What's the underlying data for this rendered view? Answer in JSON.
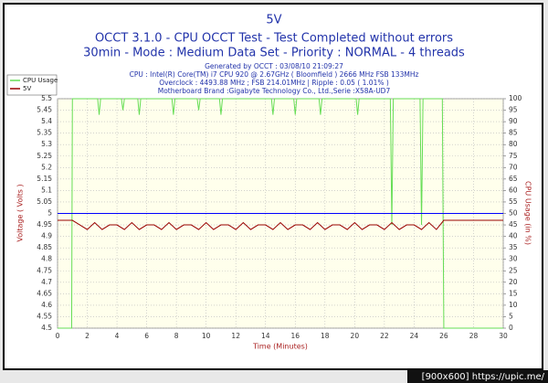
{
  "chart_data": {
    "type": "line",
    "title": "5V",
    "subtitle": "OCCT 3.1.0 - CPU OCCT Test - Test Completed without errors",
    "subtitle2": "30min - Mode : Medium Data Set - Priority : NORMAL - 4 threads",
    "info": [
      "Generated by OCCT : 03/08/10 21:09:27",
      "CPU : Intel(R) Core(TM) i7 CPU 920 @ 2.67GHz ( Bloomfield ) 2666 MHz FSB 133MHz",
      "Overclock : 4493.88 MHz ; FSB 214.01MHz | Ripple : 0.05 ( 1.01% )",
      "Motherboard Brand :Gigabyte Technology Co., Ltd.,Serie :X58A-UD7"
    ],
    "xlabel": "Time (Minutes)",
    "ylabel": "Voltage ( Volts )",
    "y2label": "CPU Usage (in %)",
    "xlim": [
      0,
      30
    ],
    "xticks": [
      0,
      2,
      4,
      6,
      8,
      10,
      12,
      14,
      16,
      18,
      20,
      22,
      24,
      26,
      28,
      30
    ],
    "ylim": [
      4.5,
      5.5
    ],
    "yticks": [
      4.5,
      4.55,
      4.6,
      4.65,
      4.7,
      4.75,
      4.8,
      4.85,
      4.9,
      4.95,
      5,
      5.05,
      5.1,
      5.15,
      5.2,
      5.25,
      5.3,
      5.35,
      5.4,
      5.45,
      5.5
    ],
    "y2lim": [
      0,
      100
    ],
    "y2ticks": [
      0,
      5,
      10,
      15,
      20,
      25,
      30,
      35,
      40,
      45,
      50,
      55,
      60,
      65,
      70,
      75,
      80,
      85,
      90,
      95,
      100
    ],
    "grid": true,
    "reference_line": {
      "value": 5,
      "color": "#0000ff"
    },
    "series": [
      {
        "name": "CPU Usage",
        "color": "#66dd55",
        "axis": "y2",
        "x": [
          0,
          0.95,
          1,
          2.7,
          2.8,
          2.9,
          4.3,
          4.4,
          4.5,
          5.4,
          5.5,
          5.6,
          7.7,
          7.8,
          7.9,
          9.4,
          9.5,
          9.6,
          10.9,
          11,
          11.1,
          14.4,
          14.5,
          14.6,
          15.9,
          16,
          16.1,
          17.6,
          17.7,
          17.8,
          20.1,
          20.2,
          20.3,
          22.4,
          22.5,
          22.6,
          24.4,
          24.5,
          24.6,
          25.9,
          26,
          30
        ],
        "values": [
          0,
          0,
          100,
          100,
          93,
          100,
          100,
          95,
          100,
          100,
          93,
          100,
          100,
          93,
          100,
          100,
          95,
          100,
          100,
          93,
          100,
          100,
          93,
          100,
          100,
          93,
          100,
          100,
          93,
          100,
          100,
          93,
          100,
          100,
          45,
          100,
          100,
          45,
          100,
          100,
          0,
          0
        ]
      },
      {
        "name": "5V",
        "color": "#990000",
        "x": [
          0,
          0.5,
          1,
          1.5,
          2,
          2.5,
          3,
          3.5,
          4,
          4.5,
          5,
          5.5,
          6,
          6.5,
          7,
          7.5,
          8,
          8.5,
          9,
          9.5,
          10,
          10.5,
          11,
          11.5,
          12,
          12.5,
          13,
          13.5,
          14,
          14.5,
          15,
          15.5,
          16,
          16.5,
          17,
          17.5,
          18,
          18.5,
          19,
          19.5,
          20,
          20.5,
          21,
          21.5,
          22,
          22.5,
          23,
          23.5,
          24,
          24.5,
          25,
          25.5,
          26,
          26.5,
          27,
          27.5,
          28,
          28.5,
          29,
          29.5,
          30
        ],
        "values": [
          4.97,
          4.97,
          4.97,
          4.95,
          4.93,
          4.96,
          4.93,
          4.95,
          4.95,
          4.93,
          4.96,
          4.93,
          4.95,
          4.95,
          4.93,
          4.96,
          4.93,
          4.95,
          4.95,
          4.93,
          4.96,
          4.93,
          4.95,
          4.95,
          4.93,
          4.96,
          4.93,
          4.95,
          4.95,
          4.93,
          4.96,
          4.93,
          4.95,
          4.95,
          4.93,
          4.96,
          4.93,
          4.95,
          4.95,
          4.93,
          4.96,
          4.93,
          4.95,
          4.95,
          4.93,
          4.96,
          4.93,
          4.95,
          4.95,
          4.93,
          4.96,
          4.93,
          4.97,
          4.97,
          4.97,
          4.97,
          4.97,
          4.97,
          4.97,
          4.97,
          4.97
        ]
      }
    ],
    "watermark": "[900x600] https://upic.me/"
  }
}
